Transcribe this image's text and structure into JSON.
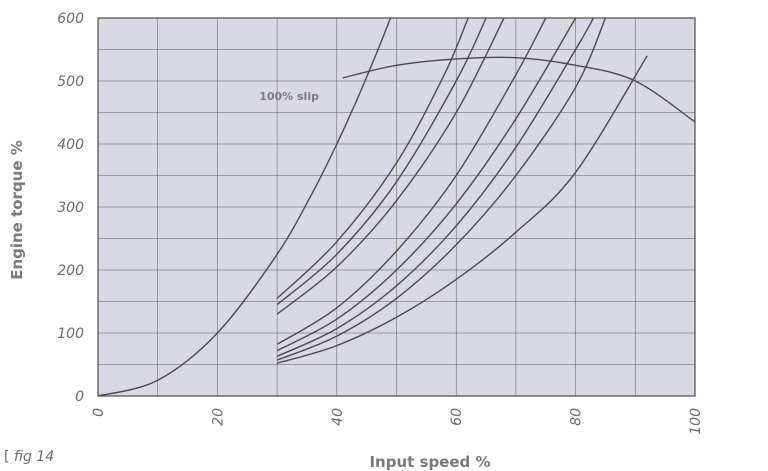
{
  "figure_label": {
    "bracket": "[",
    "text": "fig 14"
  },
  "colors": {
    "plot_background": "#d9d9e6",
    "grid": "#555555",
    "curve": "#4a4a4a",
    "text": "#7a7a7a"
  },
  "chart_data": {
    "type": "line",
    "xlabel": "Input speed %",
    "ylabel": "Engine torque %",
    "xlim": [
      0,
      100
    ],
    "ylim": [
      0,
      600
    ],
    "x_ticks": [
      0,
      20,
      40,
      60,
      80,
      100
    ],
    "y_ticks": [
      0,
      100,
      200,
      300,
      400,
      500,
      600
    ],
    "grid": true,
    "annotations": [
      {
        "text": "100% slip",
        "x": 27,
        "y": 470
      }
    ],
    "series": [
      {
        "points": [
          [
            0,
            0
          ],
          [
            10,
            25
          ],
          [
            20,
            100
          ],
          [
            30,
            225
          ],
          [
            36,
            324
          ],
          [
            40,
            400
          ],
          [
            42,
            441
          ],
          [
            44,
            484
          ],
          [
            46,
            529
          ],
          [
            48,
            576
          ],
          [
            49,
            600
          ]
        ]
      },
      {
        "points": [
          [
            41,
            505
          ],
          [
            50,
            525
          ],
          [
            60,
            535
          ],
          [
            70,
            537
          ],
          [
            80,
            525
          ],
          [
            90,
            500
          ],
          [
            100,
            435
          ]
        ]
      },
      {
        "points": [
          [
            30,
            155
          ],
          [
            40,
            245
          ],
          [
            50,
            370
          ],
          [
            58,
            510
          ],
          [
            62,
            600
          ]
        ]
      },
      {
        "points": [
          [
            30,
            145
          ],
          [
            40,
            225
          ],
          [
            50,
            340
          ],
          [
            60,
            500
          ],
          [
            65,
            600
          ]
        ]
      },
      {
        "points": [
          [
            30,
            130
          ],
          [
            40,
            205
          ],
          [
            50,
            310
          ],
          [
            60,
            450
          ],
          [
            68,
            600
          ]
        ]
      },
      {
        "points": [
          [
            30,
            82
          ],
          [
            40,
            140
          ],
          [
            50,
            230
          ],
          [
            60,
            350
          ],
          [
            70,
            510
          ],
          [
            75,
            600
          ]
        ]
      },
      {
        "points": [
          [
            30,
            72
          ],
          [
            40,
            122
          ],
          [
            50,
            200
          ],
          [
            60,
            305
          ],
          [
            70,
            440
          ],
          [
            80,
            600
          ]
        ]
      },
      {
        "points": [
          [
            30,
            63
          ],
          [
            40,
            107
          ],
          [
            50,
            175
          ],
          [
            60,
            270
          ],
          [
            70,
            395
          ],
          [
            80,
            550
          ],
          [
            83,
            600
          ]
        ]
      },
      {
        "points": [
          [
            30,
            57
          ],
          [
            40,
            95
          ],
          [
            50,
            155
          ],
          [
            60,
            240
          ],
          [
            70,
            350
          ],
          [
            80,
            490
          ],
          [
            85,
            600
          ]
        ]
      },
      {
        "points": [
          [
            30,
            52
          ],
          [
            40,
            80
          ],
          [
            50,
            125
          ],
          [
            60,
            185
          ],
          [
            70,
            260
          ],
          [
            80,
            355
          ],
          [
            92,
            540
          ]
        ]
      }
    ]
  }
}
